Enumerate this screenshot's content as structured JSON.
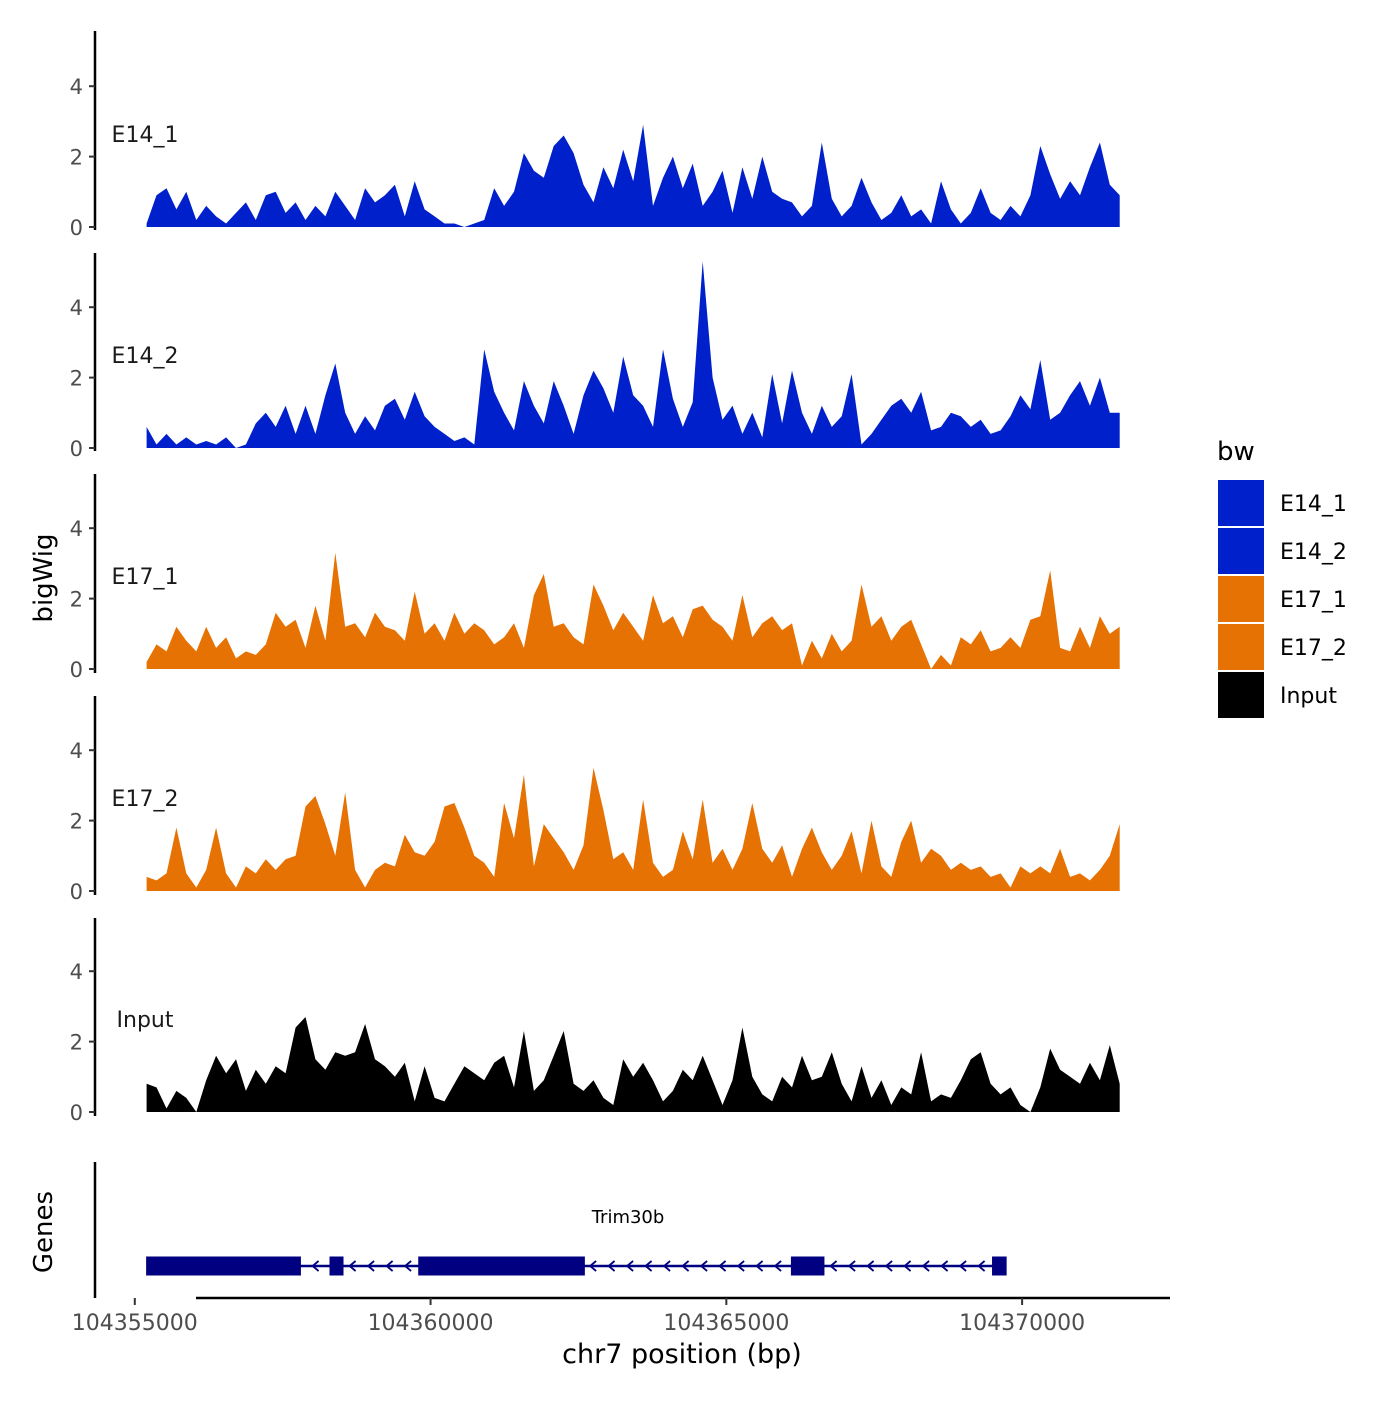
{
  "chart_data": {
    "type": "area",
    "title": "",
    "xlabel": "chr7 position (bp)",
    "ylabel": "bigWig",
    "genes_label": "Genes",
    "xlim": [
      104354750,
      104372500
    ],
    "ylim": [
      0,
      5.5
    ],
    "x_ticks": [
      104355000,
      104360000,
      104365000,
      104370000
    ],
    "x_tick_labels": [
      "104355000",
      "104360000",
      "104365000",
      "104370000"
    ],
    "y_ticks": [
      0,
      2,
      4
    ],
    "y_tick_labels": [
      "0",
      "2",
      "4"
    ],
    "legend": {
      "title": "bw",
      "position": "right",
      "entries": [
        {
          "name": "E14_1",
          "color": "#0020CC"
        },
        {
          "name": "E14_2",
          "color": "#0020CC"
        },
        {
          "name": "E17_1",
          "color": "#E77204"
        },
        {
          "name": "E17_2",
          "color": "#E77204"
        },
        {
          "name": "Input",
          "color": "#000000"
        }
      ]
    },
    "series": [
      {
        "name": "E14_1",
        "color": "#0020CC",
        "x_start": 104355200,
        "x_end": 104371650,
        "values": [
          0.1,
          0.9,
          1.1,
          0.5,
          1.0,
          0.2,
          0.6,
          0.3,
          0.1,
          0.4,
          0.7,
          0.2,
          0.9,
          1.0,
          0.4,
          0.7,
          0.2,
          0.6,
          0.3,
          1.0,
          0.6,
          0.2,
          1.1,
          0.7,
          0.9,
          1.2,
          0.3,
          1.3,
          0.5,
          0.3,
          0.1,
          0.1,
          0.0,
          0.1,
          0.2,
          1.1,
          0.6,
          1.0,
          2.1,
          1.6,
          1.4,
          2.3,
          2.6,
          2.1,
          1.2,
          0.7,
          1.7,
          1.1,
          2.2,
          1.3,
          2.9,
          0.6,
          1.4,
          2.0,
          1.1,
          1.8,
          0.6,
          1.0,
          1.6,
          0.4,
          1.7,
          0.8,
          2.0,
          1.0,
          0.8,
          0.7,
          0.3,
          0.6,
          2.4,
          0.8,
          0.3,
          0.6,
          1.4,
          0.7,
          0.2,
          0.4,
          0.9,
          0.3,
          0.5,
          0.1,
          1.3,
          0.5,
          0.1,
          0.4,
          1.1,
          0.4,
          0.2,
          0.6,
          0.3,
          0.9,
          2.3,
          1.5,
          0.8,
          1.3,
          0.9,
          1.7,
          2.4,
          1.2,
          0.9
        ]
      },
      {
        "name": "E14_2",
        "color": "#0020CC",
        "x_start": 104355200,
        "x_end": 104371650,
        "values": [
          0.6,
          0.1,
          0.4,
          0.1,
          0.3,
          0.1,
          0.2,
          0.1,
          0.3,
          0.0,
          0.1,
          0.7,
          1.0,
          0.6,
          1.2,
          0.4,
          1.2,
          0.4,
          1.5,
          2.4,
          1.0,
          0.4,
          0.9,
          0.5,
          1.2,
          1.4,
          0.8,
          1.6,
          0.9,
          0.6,
          0.4,
          0.2,
          0.3,
          0.1,
          2.8,
          1.6,
          1.0,
          0.5,
          1.9,
          1.2,
          0.7,
          1.9,
          1.2,
          0.4,
          1.5,
          2.2,
          1.7,
          1.0,
          2.6,
          1.5,
          1.2,
          0.6,
          2.8,
          1.4,
          0.6,
          1.3,
          5.3,
          2.0,
          0.8,
          1.2,
          0.4,
          1.0,
          0.3,
          2.1,
          0.7,
          2.2,
          1.0,
          0.4,
          1.2,
          0.6,
          0.9,
          2.1,
          0.1,
          0.4,
          0.8,
          1.2,
          1.4,
          1.0,
          1.6,
          0.5,
          0.6,
          1.0,
          0.9,
          0.6,
          0.8,
          0.4,
          0.5,
          0.9,
          1.5,
          1.1,
          2.5,
          0.8,
          1.0,
          1.5,
          1.9,
          1.2,
          2.0,
          1.0,
          1.0
        ]
      },
      {
        "name": "E17_1",
        "color": "#E77204",
        "x_start": 104355200,
        "x_end": 104371650,
        "values": [
          0.2,
          0.7,
          0.5,
          1.2,
          0.8,
          0.5,
          1.2,
          0.6,
          0.9,
          0.3,
          0.5,
          0.4,
          0.7,
          1.6,
          1.2,
          1.4,
          0.6,
          1.8,
          0.8,
          3.3,
          1.2,
          1.3,
          0.9,
          1.6,
          1.2,
          1.1,
          0.8,
          2.2,
          1.0,
          1.3,
          0.8,
          1.6,
          1.0,
          1.3,
          1.1,
          0.7,
          0.9,
          1.3,
          0.6,
          2.1,
          2.7,
          1.2,
          1.3,
          0.9,
          0.7,
          2.4,
          1.8,
          1.1,
          1.6,
          1.2,
          0.8,
          2.1,
          1.3,
          1.5,
          0.9,
          1.7,
          1.8,
          1.4,
          1.2,
          0.8,
          2.1,
          0.9,
          1.3,
          1.5,
          1.1,
          1.3,
          0.1,
          0.8,
          0.3,
          1.0,
          0.5,
          0.8,
          2.4,
          1.2,
          1.5,
          0.8,
          1.2,
          1.4,
          0.7,
          0.0,
          0.4,
          0.1,
          0.9,
          0.7,
          1.1,
          0.5,
          0.6,
          0.9,
          0.6,
          1.4,
          1.5,
          2.8,
          0.6,
          0.5,
          1.2,
          0.6,
          1.5,
          1.0,
          1.2
        ]
      },
      {
        "name": "E17_2",
        "color": "#E77204",
        "x_start": 104355200,
        "x_end": 104371650,
        "values": [
          0.4,
          0.3,
          0.5,
          1.8,
          0.5,
          0.1,
          0.6,
          1.8,
          0.5,
          0.1,
          0.7,
          0.5,
          0.9,
          0.6,
          0.9,
          1.0,
          2.4,
          2.7,
          1.9,
          1.0,
          2.8,
          0.6,
          0.1,
          0.6,
          0.8,
          0.7,
          1.6,
          1.1,
          1.0,
          1.4,
          2.4,
          2.5,
          1.8,
          1.0,
          0.8,
          0.4,
          2.5,
          1.5,
          3.3,
          0.7,
          1.9,
          1.5,
          1.1,
          0.6,
          1.3,
          3.5,
          2.3,
          0.9,
          1.1,
          0.6,
          2.6,
          0.8,
          0.4,
          0.6,
          1.7,
          0.9,
          2.6,
          0.8,
          1.2,
          0.6,
          1.2,
          2.5,
          1.2,
          0.8,
          1.3,
          0.4,
          1.2,
          1.8,
          1.1,
          0.6,
          1.0,
          1.7,
          0.5,
          2.0,
          0.7,
          0.4,
          1.4,
          2.0,
          0.8,
          1.2,
          1.0,
          0.6,
          0.8,
          0.6,
          0.7,
          0.4,
          0.5,
          0.1,
          0.7,
          0.5,
          0.7,
          0.5,
          1.2,
          0.4,
          0.5,
          0.3,
          0.6,
          1.0,
          1.9
        ]
      },
      {
        "name": "Input",
        "color": "#000000",
        "x_start": 104355200,
        "x_end": 104371650,
        "values": [
          0.8,
          0.7,
          0.1,
          0.6,
          0.4,
          0.0,
          0.9,
          1.6,
          1.1,
          1.5,
          0.6,
          1.2,
          0.8,
          1.3,
          1.1,
          2.4,
          2.7,
          1.5,
          1.2,
          1.7,
          1.6,
          1.7,
          2.5,
          1.5,
          1.3,
          1.0,
          1.4,
          0.3,
          1.3,
          0.4,
          0.3,
          0.8,
          1.3,
          1.1,
          0.9,
          1.4,
          1.6,
          0.7,
          2.3,
          0.6,
          0.9,
          1.6,
          2.3,
          0.8,
          0.6,
          0.9,
          0.4,
          0.2,
          1.5,
          1.0,
          1.4,
          0.9,
          0.3,
          0.6,
          1.2,
          0.9,
          1.6,
          0.9,
          0.2,
          0.9,
          2.4,
          1.0,
          0.5,
          0.3,
          1.0,
          0.7,
          1.6,
          0.9,
          1.0,
          1.7,
          0.8,
          0.3,
          1.3,
          0.4,
          0.9,
          0.2,
          0.7,
          0.5,
          1.7,
          0.3,
          0.5,
          0.4,
          0.9,
          1.5,
          1.7,
          0.8,
          0.5,
          0.7,
          0.2,
          0.0,
          0.7,
          1.8,
          1.2,
          1.0,
          0.8,
          1.4,
          0.9,
          1.9,
          0.8
        ]
      }
    ],
    "gene_track": {
      "genes": [
        {
          "name": "Trim30b",
          "start": 104355200,
          "end": 104369730,
          "strand": "-",
          "color": "#000080",
          "exons": [
            [
              104355200,
              104356700
            ],
            [
              104356700,
              104357800
            ],
            [
              104358300,
              104358520
            ],
            [
              104359800,
              104361150
            ],
            [
              104361150,
              104362600
            ],
            [
              104366100,
              104366650
            ],
            [
              104369500,
              104369730
            ]
          ]
        }
      ]
    }
  }
}
